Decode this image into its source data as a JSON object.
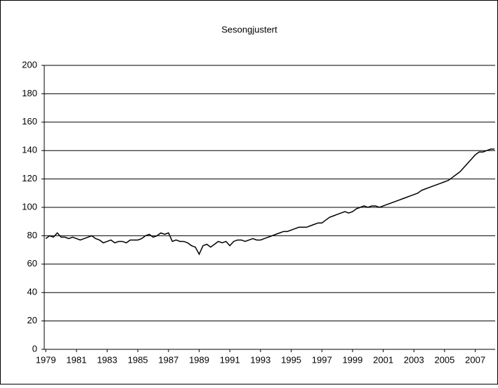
{
  "chart_data": {
    "type": "line",
    "title": "Sesongjustert",
    "x": [
      1979,
      1979.25,
      1979.5,
      1979.75,
      1980,
      1980.25,
      1980.5,
      1980.75,
      1981,
      1981.25,
      1981.5,
      1981.75,
      1982,
      1982.25,
      1982.5,
      1982.75,
      1983,
      1983.25,
      1983.5,
      1983.75,
      1984,
      1984.25,
      1984.5,
      1984.75,
      1985,
      1985.25,
      1985.5,
      1985.75,
      1986,
      1986.25,
      1986.5,
      1986.75,
      1987,
      1987.25,
      1987.5,
      1987.75,
      1988,
      1988.25,
      1988.5,
      1988.75,
      1989,
      1989.25,
      1989.5,
      1989.75,
      1990,
      1990.25,
      1990.5,
      1990.75,
      1991,
      1991.25,
      1991.5,
      1991.75,
      1992,
      1992.25,
      1992.5,
      1992.75,
      1993,
      1993.25,
      1993.5,
      1993.75,
      1994,
      1994.25,
      1994.5,
      1994.75,
      1995,
      1995.25,
      1995.5,
      1995.75,
      1996,
      1996.25,
      1996.5,
      1996.75,
      1997,
      1997.25,
      1997.5,
      1997.75,
      1998,
      1998.25,
      1998.5,
      1998.75,
      1999,
      1999.25,
      1999.5,
      1999.75,
      2000,
      2000.25,
      2000.5,
      2000.75,
      2001,
      2001.25,
      2001.5,
      2001.75,
      2002,
      2002.25,
      2002.5,
      2002.75,
      2003,
      2003.25,
      2003.5,
      2003.75,
      2004,
      2004.25,
      2004.5,
      2004.75,
      2005,
      2005.25,
      2005.5,
      2005.75,
      2006,
      2006.25,
      2006.5,
      2006.75,
      2007,
      2007.25,
      2007.5,
      2007.75,
      2008,
      2008.25
    ],
    "series": [
      {
        "color": "#000000",
        "values": [
          78,
          80,
          79,
          82,
          79,
          79,
          78,
          79,
          78,
          77,
          78,
          79,
          80,
          78,
          77,
          75,
          76,
          77,
          75,
          76,
          76,
          75,
          77,
          77,
          77,
          78,
          80,
          81,
          79,
          80,
          82,
          81,
          82,
          76,
          77,
          76,
          76,
          75,
          73,
          72,
          67,
          73,
          74,
          72,
          74,
          76,
          75,
          76,
          73,
          76,
          77,
          77,
          76,
          77,
          78,
          77,
          77,
          78,
          79,
          80,
          81,
          82,
          83,
          83,
          84,
          85,
          86,
          86,
          86,
          87,
          88,
          89,
          89,
          91,
          93,
          94,
          95,
          96,
          97,
          96,
          97,
          99,
          100,
          101,
          100,
          101,
          101,
          100,
          101,
          102,
          103,
          104,
          105,
          106,
          107,
          108,
          109,
          110,
          112,
          113,
          114,
          115,
          116,
          117,
          118,
          119,
          121,
          123,
          125,
          128,
          131,
          134,
          137,
          139,
          139,
          140,
          141,
          141
        ]
      }
    ],
    "xlim": [
      1978.9,
      2008.3
    ],
    "xticks": [
      1979,
      1981,
      1983,
      1985,
      1987,
      1989,
      1991,
      1993,
      1995,
      1997,
      1999,
      2001,
      2003,
      2005,
      2007
    ],
    "ylim": [
      0,
      200
    ],
    "yticks": [
      0,
      20,
      40,
      60,
      80,
      100,
      120,
      140,
      160,
      180,
      200
    ],
    "grid": true
  }
}
